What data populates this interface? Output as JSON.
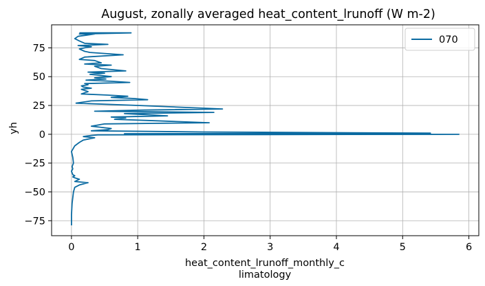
{
  "chart_data": {
    "type": "line",
    "title": "August, zonally averaged heat_content_lrunoff (W m-2)",
    "xlabel": [
      "heat_content_lrunoff_monthly_c",
      "limatology"
    ],
    "ylabel": "yh",
    "xlim": [
      -0.3,
      6.15
    ],
    "ylim": [
      -88,
      95
    ],
    "xticks": [
      0,
      1,
      2,
      3,
      4,
      5,
      6
    ],
    "xtick_labels": [
      "0",
      "1",
      "2",
      "3",
      "4",
      "5",
      "6"
    ],
    "yticks": [
      75,
      50,
      25,
      0,
      -25,
      -50,
      -75
    ],
    "ytick_labels": [
      "75",
      "50",
      "25",
      "0",
      "−25",
      "−50",
      "−75"
    ],
    "grid": true,
    "legend_position": "top-right",
    "series": [
      {
        "name": "070",
        "color": "#0a6aa1",
        "x": [
          0.12,
          0.9,
          0.12,
          0.35,
          0.1,
          0.05,
          0.12,
          0.2,
          0.55,
          0.1,
          0.3,
          0.2,
          0.12,
          0.2,
          0.28,
          0.78,
          0.2,
          0.12,
          0.35,
          0.45,
          0.2,
          0.6,
          0.35,
          0.45,
          0.82,
          0.25,
          0.5,
          0.28,
          0.45,
          0.6,
          0.35,
          0.52,
          0.22,
          0.6,
          0.88,
          0.2,
          0.25,
          0.15,
          0.18,
          0.3,
          0.15,
          0.25,
          0.15,
          0.55,
          0.85,
          0.6,
          0.95,
          1.15,
          0.3,
          0.07,
          1.0,
          2.28,
          1.1,
          0.35,
          2.15,
          0.8,
          1.45,
          0.6,
          0.82,
          0.65,
          1.15,
          2.08,
          0.5,
          0.3,
          0.6,
          0.55,
          0.3,
          1.98,
          5.42,
          0.8,
          5.85,
          0.4,
          0.3,
          0.18,
          0.35,
          0.18,
          0.12,
          0.05,
          0.0,
          0.02,
          0.03,
          0.01,
          0.02,
          0.0,
          0.02,
          0.05,
          0.02,
          0.06,
          0.12,
          0.05,
          0.25,
          0.12,
          0.05,
          0.03,
          0.01,
          0.0,
          0.0
        ],
        "y": [
          88,
          88,
          87,
          87,
          85,
          83,
          81,
          79,
          78,
          77,
          76,
          75,
          74,
          72,
          71,
          69,
          67,
          65,
          64,
          62,
          61,
          60,
          59,
          57,
          55,
          54,
          53,
          52,
          51,
          50,
          49,
          48,
          47,
          46,
          45,
          44,
          43,
          42,
          41,
          40,
          39,
          37,
          35,
          34,
          33,
          32,
          31,
          30,
          29,
          27,
          25,
          22,
          21,
          20,
          19,
          18,
          16,
          15,
          14,
          13,
          12,
          10,
          9,
          7,
          5,
          4,
          3,
          2,
          1,
          0.5,
          0,
          -0.5,
          -1,
          -2,
          -3,
          -5,
          -7,
          -10,
          -15,
          -20,
          -25,
          -28,
          -30,
          -32,
          -35,
          -36,
          -37,
          -38,
          -39,
          -41,
          -42,
          -44,
          -46,
          -50,
          -60,
          -70,
          -79
        ]
      }
    ]
  }
}
